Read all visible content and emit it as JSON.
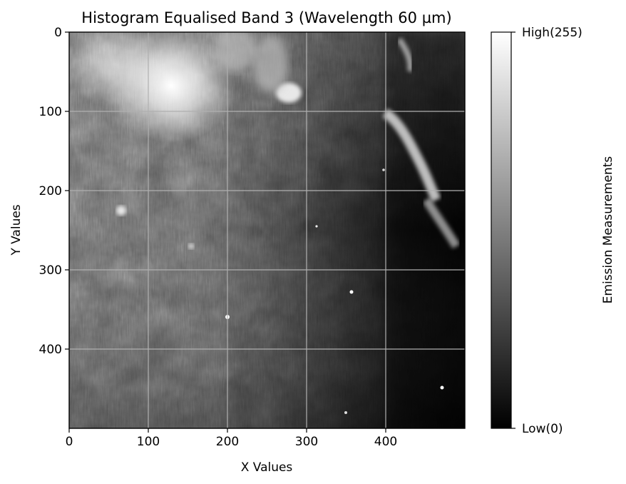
{
  "chart_data": {
    "type": "heatmap",
    "title": "Histogram Equalised Band 3 (Wavelength 60 µm)",
    "xlabel": "X Values",
    "ylabel": "Y Values",
    "xlim": [
      0,
      500
    ],
    "ylim": [
      500,
      0
    ],
    "x_ticks": [
      0,
      100,
      200,
      300,
      400
    ],
    "y_ticks": [
      0,
      100,
      200,
      300,
      400
    ],
    "grid": true,
    "colormap": "gray",
    "colorbar": {
      "label": "Emission Measurements",
      "range": [
        0,
        255
      ],
      "tick_labels": [
        {
          "value": 255,
          "label": "High(255)"
        },
        {
          "value": 0,
          "label": "Low(0)"
        }
      ]
    },
    "grid_color": "#b0b0b0"
  }
}
